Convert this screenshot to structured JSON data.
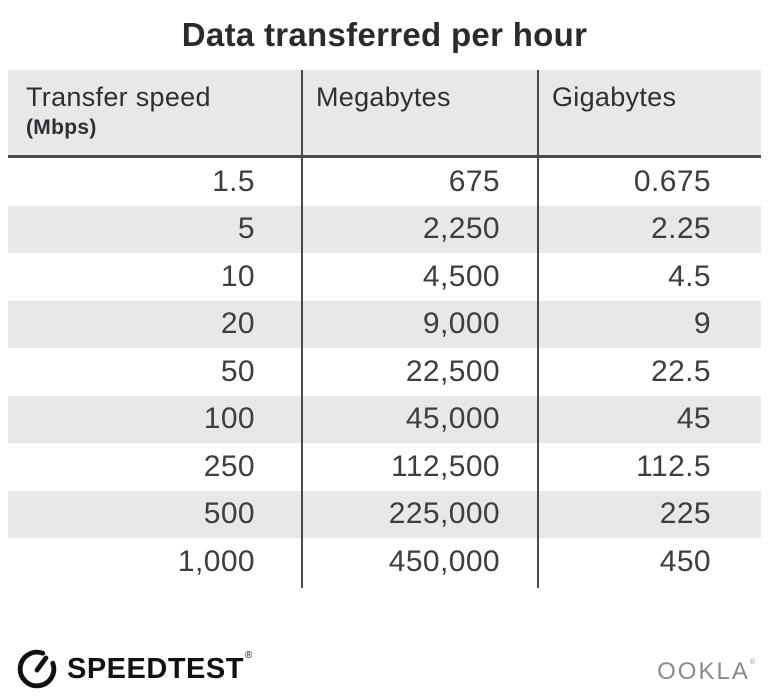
{
  "title": "Data transferred per hour",
  "table": {
    "columns": [
      {
        "label": "Transfer speed",
        "sublabel": "(Mbps)"
      },
      {
        "label": "Megabytes",
        "sublabel": ""
      },
      {
        "label": "Gigabytes",
        "sublabel": ""
      }
    ],
    "rows": [
      [
        "1.5",
        "675",
        "0.675"
      ],
      [
        "5",
        "2,250",
        "2.25"
      ],
      [
        "10",
        "4,500",
        "4.5"
      ],
      [
        "20",
        "9,000",
        "9"
      ],
      [
        "50",
        "22,500",
        "22.5"
      ],
      [
        "100",
        "45,000",
        "45"
      ],
      [
        "250",
        "112,500",
        "112.5"
      ],
      [
        "500",
        "225,000",
        "225"
      ],
      [
        "1,000",
        "450,000",
        "450"
      ]
    ]
  },
  "footer": {
    "speedtest_label": "SPEEDTEST",
    "speedtest_trademark": "®",
    "ookla_label": "OOKLA",
    "ookla_trademark": "®"
  },
  "icons": {
    "speedtest_gauge": "circular speedometer gauge with needle pointing upper-right toward gap"
  },
  "colors": {
    "background": "#ffffff",
    "header_bg": "#e8e8eb",
    "stripe_bg": "#e8e8eb",
    "divider": "#4a4a4c",
    "title_text": "#2b2b2e",
    "body_text": "#3d3d42",
    "speedtest_black": "#111114",
    "ookla_gray": "#8a8a8d"
  },
  "chart_data": {
    "type": "table",
    "title": "Data transferred per hour",
    "columns": [
      "Transfer speed (Mbps)",
      "Megabytes",
      "Gigabytes"
    ],
    "rows": [
      [
        1.5,
        675,
        0.675
      ],
      [
        5,
        2250,
        2.25
      ],
      [
        10,
        4500,
        4.5
      ],
      [
        20,
        9000,
        9
      ],
      [
        50,
        22500,
        22.5
      ],
      [
        100,
        45000,
        45
      ],
      [
        250,
        112500,
        112.5
      ],
      [
        500,
        225000,
        225
      ],
      [
        1000,
        450000,
        450
      ]
    ]
  }
}
